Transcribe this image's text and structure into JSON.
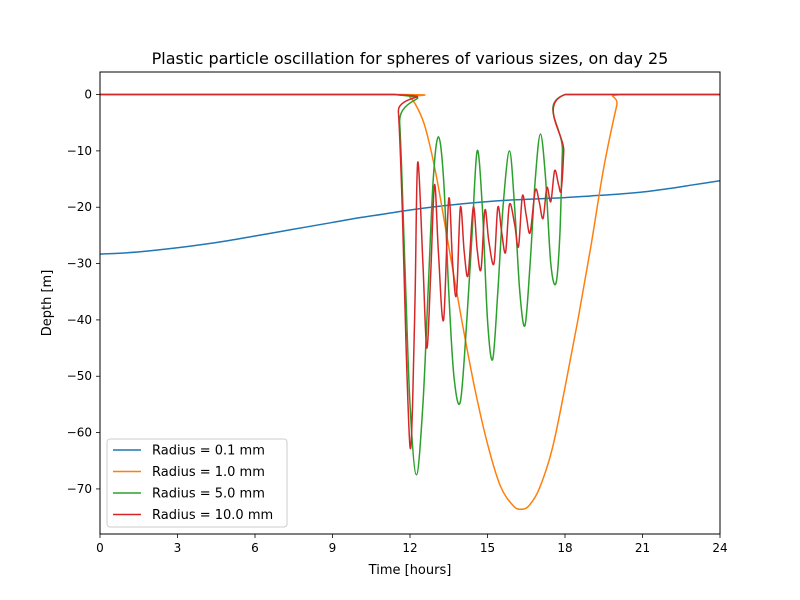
{
  "chart_data": {
    "type": "line",
    "title": "Plastic particle oscillation for spheres of various sizes, on day 25",
    "xlabel": "Time [hours]",
    "ylabel": "Depth [m]",
    "xlim": [
      0,
      24
    ],
    "ylim": [
      -78,
      4
    ],
    "xticks": [
      0,
      3,
      6,
      9,
      12,
      15,
      18,
      21,
      24
    ],
    "yticks": [
      0,
      -10,
      -20,
      -30,
      -40,
      -50,
      -60,
      -70
    ],
    "grid": false,
    "legend_position": "lower-left",
    "series": [
      {
        "name": "Radius = 0.1 mm",
        "color": "#1f77b4",
        "x": [
          0,
          1,
          2,
          3,
          4,
          5,
          6,
          7,
          8,
          9,
          10,
          11,
          12,
          13,
          14,
          15,
          16,
          17,
          18,
          19,
          20,
          21,
          22,
          23,
          24
        ],
        "y": [
          -28.3,
          -28.1,
          -27.7,
          -27.2,
          -26.6,
          -25.9,
          -25.1,
          -24.3,
          -23.5,
          -22.7,
          -21.9,
          -21.2,
          -20.5,
          -19.9,
          -19.4,
          -19.0,
          -18.7,
          -18.5,
          -18.3,
          -18.0,
          -17.7,
          -17.3,
          -16.7,
          -16.0,
          -15.3
        ]
      },
      {
        "name": "Radius = 1.0 mm",
        "color": "#ff7f0e",
        "x": [
          0,
          11.6,
          12.0,
          12.3,
          12.6,
          13.0,
          13.5,
          14.0,
          14.5,
          15.0,
          15.5,
          16.0,
          16.3,
          16.6,
          17.0,
          17.5,
          18.0,
          18.5,
          19.0,
          19.5,
          20.0,
          20.15,
          24
        ],
        "y": [
          0,
          0,
          -0.5,
          -2.5,
          -6,
          -14,
          -27,
          -40,
          -52,
          -62,
          -69.5,
          -73,
          -73.6,
          -73,
          -70,
          -63,
          -52,
          -40,
          -27,
          -13,
          -2,
          0,
          0
        ]
      },
      {
        "name": "Radius = 5.0 mm",
        "color": "#2ca02c",
        "x": [
          0,
          11.4,
          11.6,
          11.8,
          12.0,
          12.25,
          12.5,
          12.7,
          12.9,
          13.1,
          13.3,
          13.5,
          13.7,
          13.95,
          14.2,
          14.4,
          14.6,
          14.8,
          15.0,
          15.2,
          15.4,
          15.6,
          15.85,
          16.05,
          16.25,
          16.45,
          16.65,
          16.85,
          17.05,
          17.25,
          17.45,
          17.65,
          17.8,
          17.9,
          18.0,
          24
        ],
        "y": [
          0,
          0,
          -5,
          -30,
          -55,
          -67.5,
          -55,
          -35,
          -15,
          -7.5,
          -15,
          -35,
          -50,
          -54.5,
          -40,
          -25,
          -10,
          -20,
          -40,
          -47,
          -35,
          -20,
          -10,
          -20,
          -35,
          -41,
          -30,
          -15,
          -7,
          -15,
          -30,
          -33.5,
          -25,
          -10,
          0,
          0
        ]
      },
      {
        "name": "Radius = 10.0 mm",
        "color": "#d62728",
        "x": [
          0,
          11.4,
          11.55,
          11.7,
          11.85,
          12.0,
          12.1,
          12.2,
          12.3,
          12.5,
          12.65,
          12.8,
          12.95,
          13.1,
          13.3,
          13.5,
          13.65,
          13.8,
          13.95,
          14.1,
          14.25,
          14.45,
          14.6,
          14.75,
          14.9,
          15.05,
          15.25,
          15.4,
          15.55,
          15.7,
          15.85,
          16.05,
          16.2,
          16.35,
          16.5,
          16.65,
          16.85,
          17.0,
          17.15,
          17.3,
          17.45,
          17.6,
          17.75,
          17.85,
          17.95,
          18.0,
          24
        ],
        "y": [
          0,
          0,
          -3,
          -20,
          -45,
          -62.5,
          -55,
          -35,
          -12,
          -30,
          -45,
          -32,
          -16,
          -28,
          -40,
          -18.5,
          -30,
          -35.5,
          -20,
          -28,
          -32,
          -20,
          -27.5,
          -31,
          -20.5,
          -26,
          -30,
          -20,
          -24.5,
          -28,
          -19.5,
          -23,
          -27,
          -18,
          -21.5,
          -24.5,
          -17,
          -19,
          -22,
          -16.5,
          -19,
          -13.5,
          -16,
          -17,
          -10,
          0,
          0
        ]
      }
    ]
  }
}
